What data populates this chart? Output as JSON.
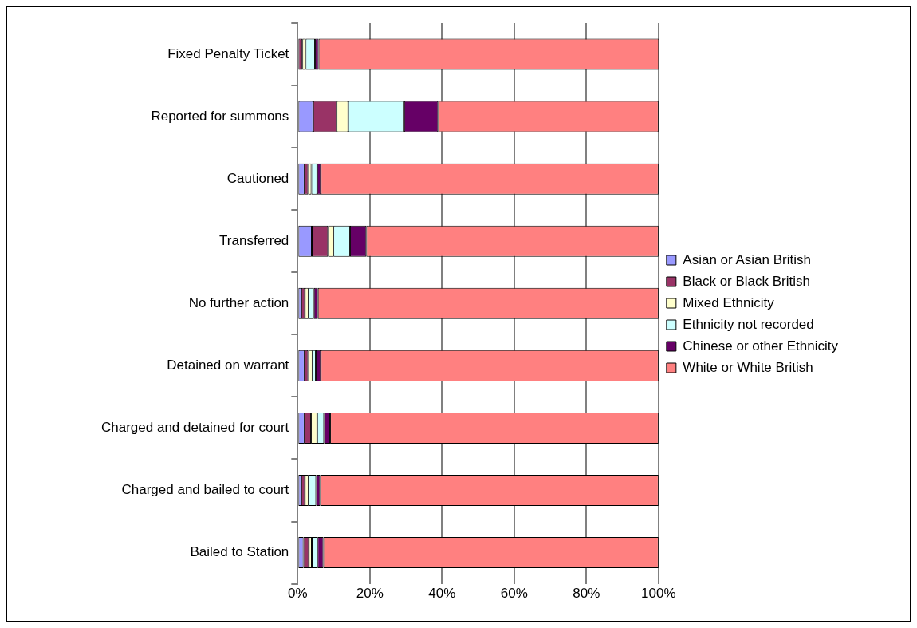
{
  "chart_data": {
    "type": "bar",
    "orientation": "horizontal",
    "stacked": true,
    "categories": [
      "Fixed Penalty Ticket",
      "Reported for summons",
      "Cautioned",
      "Transferred",
      "No further action",
      "Detained on warrant",
      "Charged and detained for court",
      "Charged and bailed to court",
      "Bailed to Station"
    ],
    "series": [
      {
        "name": "Asian or Asian British",
        "color": "#9999ff",
        "values": [
          null,
          4.3,
          1.9,
          3.9,
          1.0,
          1.9,
          1.9,
          1.0,
          1.6
        ]
      },
      {
        "name": "Black or Black British",
        "color": "#993366",
        "values": [
          1.3,
          6.5,
          1.0,
          4.5,
          1.0,
          1.0,
          1.8,
          1.0,
          1.5
        ]
      },
      {
        "name": "Mixed Ethnicity",
        "color": "#ffffcc",
        "values": [
          0.9,
          3.2,
          0.9,
          1.5,
          1.0,
          1.2,
          1.7,
          1.0,
          0.8
        ]
      },
      {
        "name": "Ethnicity not recorded",
        "color": "#ccffff",
        "values": [
          2.6,
          15.5,
          1.6,
          4.6,
          1.5,
          0.9,
          1.9,
          2.1,
          1.6
        ]
      },
      {
        "name": "Chinese or other Ethnicity",
        "color": "#660066",
        "values": [
          1.0,
          9.4,
          1.0,
          4.5,
          1.1,
          1.4,
          1.7,
          1.1,
          1.6
        ]
      },
      {
        "name": "White or White British",
        "color": "#ff8080",
        "values": [
          94.3,
          61.1,
          93.6,
          81.0,
          94.4,
          93.6,
          91.0,
          93.8,
          92.9
        ]
      }
    ],
    "xlim": [
      0,
      100
    ],
    "xticks": [
      {
        "value": 0,
        "label": "0%"
      },
      {
        "value": 20,
        "label": "20%"
      },
      {
        "value": 40,
        "label": "40%"
      },
      {
        "value": 60,
        "label": "60%"
      },
      {
        "value": 80,
        "label": "80%"
      },
      {
        "value": 100,
        "label": "100%"
      }
    ],
    "grid": "x",
    "legend": "right"
  }
}
